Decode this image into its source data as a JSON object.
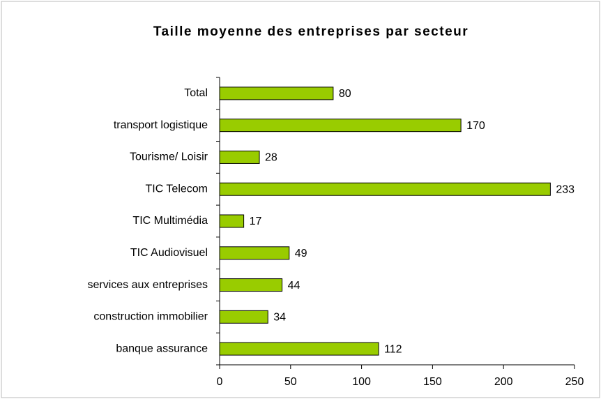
{
  "chart_data": {
    "type": "hbar",
    "title": "Taille moyenne des entreprises par secteur",
    "categories": [
      "Total",
      "transport logistique",
      "Tourisme/ Loisir",
      "TIC Telecom",
      "TIC Multimédia",
      "TIC Audiovisuel",
      "services aux entreprises",
      "construction immobilier",
      "banque assurance"
    ],
    "values": [
      80,
      170,
      28,
      233,
      17,
      49,
      44,
      34,
      112
    ],
    "color": "#99cc00",
    "xlim": [
      0,
      250
    ],
    "xticks": [
      0,
      50,
      100,
      150,
      200,
      250
    ]
  }
}
